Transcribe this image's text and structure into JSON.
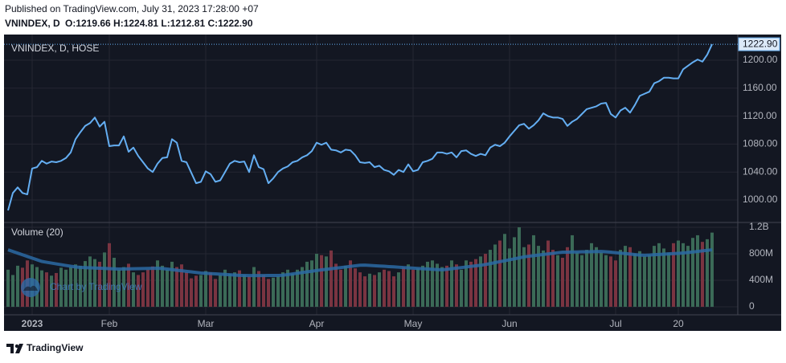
{
  "published": "Published on TradingView.com, July 31, 2023 17:28:00 +07",
  "symbol": "VNINDEX, D",
  "ohlc": "O:1219.66 H:1224.81 L:1212.81 C:1222.90",
  "footer_brand": "TradingView",
  "chart_data": [
    {
      "type": "line",
      "title": "VNINDEX, D, HOSE",
      "watermark": "Chart by TradingView",
      "color": "#64aef2",
      "values": [
        985,
        1010,
        1018,
        1010,
        1008,
        1045,
        1047,
        1056,
        1052,
        1055,
        1054,
        1056,
        1060,
        1068,
        1087,
        1097,
        1106,
        1110,
        1118,
        1105,
        1112,
        1077,
        1078,
        1078,
        1091,
        1069,
        1075,
        1063,
        1054,
        1045,
        1040,
        1052,
        1060,
        1061,
        1087,
        1082,
        1056,
        1054,
        1039,
        1024,
        1026,
        1041,
        1037,
        1026,
        1028,
        1040,
        1052,
        1056,
        1054,
        1055,
        1040,
        1064,
        1047,
        1044,
        1024,
        1031,
        1040,
        1045,
        1048,
        1054,
        1056,
        1061,
        1064,
        1070,
        1082,
        1079,
        1082,
        1072,
        1071,
        1068,
        1072,
        1071,
        1064,
        1054,
        1053,
        1054,
        1047,
        1049,
        1043,
        1041,
        1036,
        1043,
        1040,
        1051,
        1041,
        1043,
        1054,
        1056,
        1059,
        1068,
        1068,
        1066,
        1068,
        1061,
        1070,
        1071,
        1066,
        1063,
        1066,
        1064,
        1075,
        1079,
        1077,
        1082,
        1091,
        1099,
        1107,
        1109,
        1102,
        1107,
        1114,
        1124,
        1120,
        1118,
        1118,
        1116,
        1106,
        1112,
        1116,
        1123,
        1130,
        1132,
        1134,
        1138,
        1139,
        1123,
        1118,
        1128,
        1132,
        1125,
        1136,
        1149,
        1152,
        1155,
        1167,
        1170,
        1175,
        1175,
        1174,
        1174,
        1187,
        1192,
        1197,
        1201,
        1198,
        1208,
        1222.9
      ],
      "last_value_label": "1222.90",
      "ylim": [
        967.8,
        1236.8
      ],
      "yticks": [
        {
          "value": 1000,
          "label": "1000.00"
        },
        {
          "value": 1040,
          "label": "1040.00"
        },
        {
          "value": 1080,
          "label": "1080.00"
        },
        {
          "value": 1120,
          "label": "1120.00"
        },
        {
          "value": 1160,
          "label": "1160.00"
        },
        {
          "value": 1200,
          "label": "1200.00"
        }
      ],
      "grid": true
    },
    {
      "type": "bar",
      "title": "Volume (20)",
      "up_color": "#3b6a57",
      "down_color": "#7a3441",
      "categories": [
        null,
        null,
        null,
        null,
        null,
        "2023",
        null,
        null,
        null,
        null,
        null,
        null,
        null,
        null,
        null,
        null,
        null,
        null,
        null,
        null,
        null,
        "Feb",
        null,
        null,
        null,
        null,
        null,
        null,
        null,
        null,
        null,
        null,
        null,
        null,
        null,
        null,
        null,
        null,
        null,
        null,
        null,
        "Mar",
        null,
        null,
        null,
        null,
        null,
        null,
        null,
        null,
        null,
        null,
        null,
        null,
        null,
        null,
        null,
        null,
        null,
        null,
        null,
        null,
        null,
        null,
        "Apr",
        null,
        null,
        null,
        null,
        null,
        null,
        null,
        null,
        null,
        null,
        null,
        null,
        null,
        null,
        null,
        null,
        null,
        null,
        null,
        "May",
        null,
        null,
        null,
        null,
        null,
        null,
        null,
        null,
        null,
        null,
        null,
        null,
        null,
        null,
        null,
        null,
        null,
        null,
        null,
        "Jun",
        null,
        null,
        null,
        null,
        null,
        null,
        null,
        null,
        null,
        null,
        null,
        null,
        null,
        null,
        null,
        null,
        null,
        null,
        null,
        null,
        null,
        "Jul",
        null,
        null,
        null,
        null,
        null,
        null,
        null,
        null,
        null,
        null,
        null,
        null,
        "20",
        null,
        null,
        null,
        null,
        null,
        null,
        null
      ],
      "values": [
        560,
        480,
        620,
        590,
        700,
        640,
        600,
        550,
        520,
        470,
        510,
        590,
        560,
        600,
        640,
        620,
        690,
        760,
        720,
        680,
        820,
        960,
        740,
        560,
        600,
        650,
        520,
        480,
        520,
        560,
        610,
        700,
        620,
        560,
        680,
        600,
        640,
        520,
        430,
        470,
        480,
        540,
        520,
        420,
        480,
        560,
        500,
        520,
        550,
        480,
        460,
        600,
        540,
        480,
        420,
        440,
        460,
        520,
        560,
        500,
        560,
        600,
        680,
        700,
        800,
        780,
        760,
        850,
        650,
        560,
        620,
        700,
        580,
        520,
        460,
        500,
        480,
        520,
        560,
        540,
        460,
        520,
        600,
        640,
        560,
        580,
        620,
        680,
        700,
        650,
        600,
        620,
        700,
        640,
        560,
        700,
        680,
        720,
        760,
        800,
        860,
        940,
        1000,
        1100,
        880,
        1050,
        1200,
        900,
        940,
        1080,
        920,
        850,
        1000,
        860,
        780,
        740,
        900,
        1080,
        820,
        780,
        860,
        960,
        900,
        820,
        780,
        760,
        700,
        860,
        920,
        900,
        800,
        840,
        760,
        780,
        920,
        960,
        880,
        820,
        960,
        1000,
        960,
        920,
        1040,
        1080,
        980,
        1020,
        1120
      ],
      "ma": {
        "color": "#2b6aa3",
        "values": [
          860,
          835,
          810,
          785,
          760,
          735,
          710,
          685,
          672,
          660,
          648,
          636,
          624,
          612,
          602,
          594,
          591,
          588,
          585,
          582,
          579,
          576,
          573,
          570,
          572,
          573,
          575,
          576,
          578,
          579,
          580,
          582,
          578,
          570,
          561,
          552,
          544,
          535,
          527,
          518,
          510,
          506,
          501,
          497,
          492,
          488,
          483,
          479,
          474,
          473,
          472,
          472,
          471,
          472,
          473,
          473,
          473,
          476,
          486,
          496,
          507,
          517,
          527,
          537,
          548,
          558,
          566,
          575,
          584,
          592,
          601,
          610,
          618,
          627,
          629,
          625,
          620,
          616,
          612,
          607,
          603,
          598,
          592,
          588,
          583,
          579,
          575,
          571,
          566,
          562,
          558,
          566,
          575,
          584,
          592,
          601,
          610,
          618,
          627,
          638,
          652,
          667,
          681,
          695,
          710,
          724,
          738,
          754,
          763,
          772,
          781,
          790,
          798,
          807,
          816,
          824,
          825,
          827,
          828,
          830,
          831,
          832,
          834,
          835,
          831,
          824,
          817,
          810,
          803,
          796,
          788,
          781,
          777,
          781,
          786,
          790,
          794,
          799,
          803,
          807,
          812,
          820,
          828,
          836,
          844,
          852,
          860
        ]
      },
      "ylim": [
        -121,
        1273
      ],
      "yticks": [
        0,
        {
          "value": 400,
          "label": "400M"
        },
        {
          "value": 800,
          "label": "800M"
        },
        {
          "value": 1200,
          "label": "1.2B"
        }
      ],
      "grid": true
    }
  ]
}
